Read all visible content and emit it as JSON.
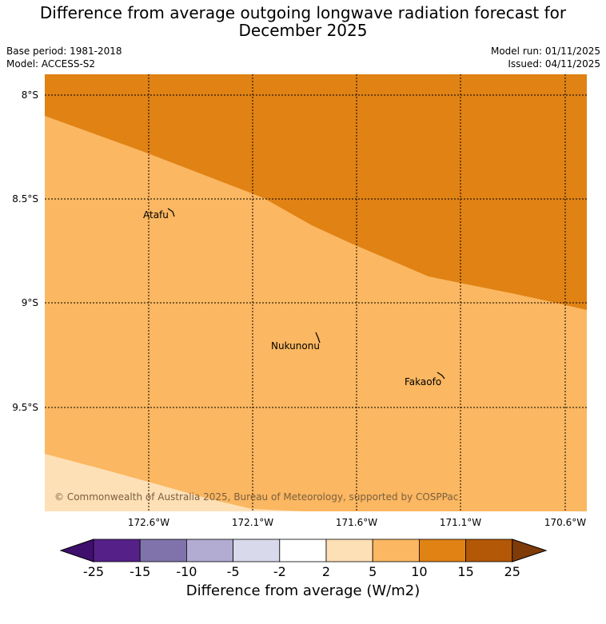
{
  "title_line1": "Difference from average outgoing longwave radiation forecast for",
  "title_line2": "December 2025",
  "base_period": "Base period: 1981-2018",
  "model": "Model: ACCESS-S2",
  "model_run": "Model run: 01/11/2025",
  "issued": "Issued: 04/11/2025",
  "lat_labels": [
    "8°S",
    "8.5°S",
    "9°S",
    "9.5°S"
  ],
  "lon_labels": [
    "172.6°W",
    "172.1°W",
    "171.6°W",
    "171.1°W",
    "170.6°W"
  ],
  "places": [
    {
      "name": "Atafu"
    },
    {
      "name": "Nukunonu"
    },
    {
      "name": "Fakaofo"
    }
  ],
  "copyright": "© Commonwealth of Australia 2025, Bureau of Meteorology, supported by COSPPac",
  "colorbar": {
    "ticks": [
      "-25",
      "-15",
      "-10",
      "-5",
      "-2",
      "2",
      "5",
      "10",
      "15",
      "25"
    ],
    "colors": [
      "#3f0f6e",
      "#552088",
      "#8073ac",
      "#b2abd2",
      "#d8daeb",
      "#ffffff",
      "#fee0b6",
      "#fbb761",
      "#e08214",
      "#b35806",
      "#7f3b08"
    ],
    "title": "Difference from average (W/m2)"
  },
  "map_colors": {
    "band_10_15": "#e08214",
    "band_5_10": "#fbb761",
    "band_2_5": "#fee0b6"
  }
}
